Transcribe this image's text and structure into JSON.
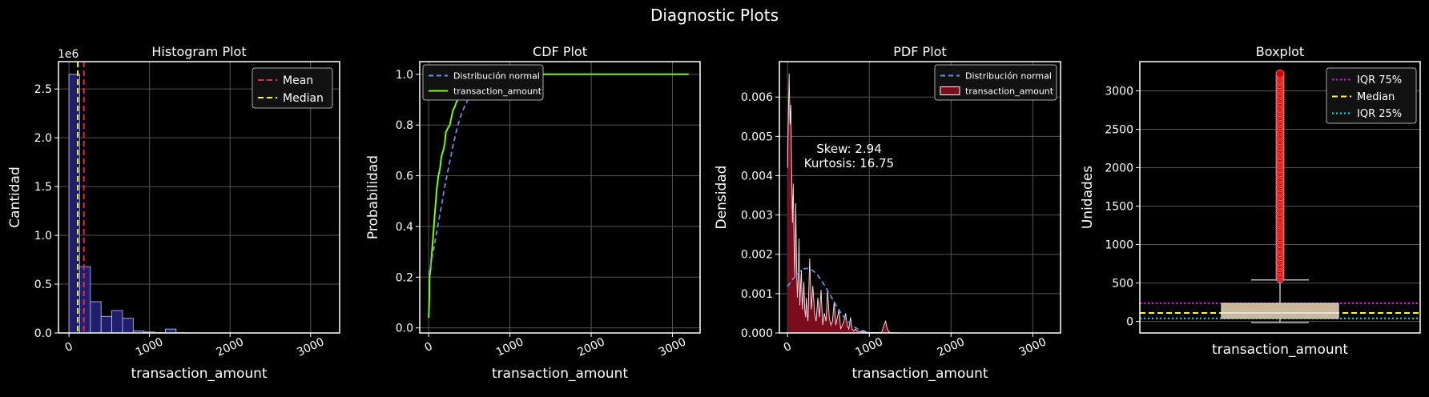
{
  "suptitle": "Diagnostic Plots",
  "colors": {
    "background": "#000000",
    "hist_fill": "#1f1f6e",
    "mean": "#e8284f",
    "median": "#ffff33",
    "normal": "#6a8fd8",
    "cdf_line": "#7cfc00",
    "pdf_fill": "#7a0c1c",
    "iqr75": "#ff00ff",
    "iqr25": "#00e5e5",
    "outlier": "#d10000",
    "box_fill": "#c9b79a"
  },
  "chart_data": [
    {
      "type": "bar",
      "title": "Histogram Plot",
      "xlabel": "transaction_amount",
      "ylabel": "Cantidad",
      "offset_text": "1e6",
      "xlim": [
        -130,
        3360
      ],
      "ylim": [
        0,
        2.78
      ],
      "xticks": [
        0,
        1000,
        2000,
        3000
      ],
      "xtick_labels": [
        "0",
        "1000",
        "2000",
        "3000"
      ],
      "yticks": [
        0.0,
        0.5,
        1.0,
        1.5,
        2.0,
        2.5
      ],
      "ytick_labels": [
        "0.0",
        "0.5",
        "1.0",
        "1.5",
        "2.0",
        "2.5"
      ],
      "bin_width": 133,
      "bin_starts": [
        0,
        133,
        266,
        399,
        532,
        665,
        798,
        931,
        1064,
        1197,
        1330,
        1463,
        1596,
        1729,
        1862,
        1995,
        2128,
        2261,
        2394,
        2527,
        2660,
        2793,
        2926,
        3059
      ],
      "values": [
        2.65,
        0.68,
        0.32,
        0.17,
        0.23,
        0.15,
        0.02,
        0.01,
        0.003,
        0.04,
        0.003,
        0.002,
        0.001,
        0.001,
        0.001,
        0.001,
        0.001,
        0.001,
        0.001,
        0.001,
        0.001,
        0.001,
        0.001,
        0.001
      ],
      "mean": 185,
      "median": 110,
      "legend": [
        "Mean",
        "Median"
      ],
      "legend_loc": "upper right"
    },
    {
      "type": "line",
      "title": "CDF Plot",
      "xlabel": "transaction_amount",
      "ylabel": "Probabilidad",
      "xlim": [
        -110,
        3340
      ],
      "ylim": [
        -0.02,
        1.05
      ],
      "xticks": [
        0,
        1000,
        2000,
        3000
      ],
      "xtick_labels": [
        "0",
        "1000",
        "2000",
        "3000"
      ],
      "yticks": [
        0.0,
        0.2,
        0.4,
        0.6,
        0.8,
        1.0
      ],
      "ytick_labels": [
        "0.0",
        "0.2",
        "0.4",
        "0.6",
        "0.8",
        "1.0"
      ],
      "series": [
        {
          "name": "Distribución normal",
          "style": "dashed",
          "x": [
            0,
            50,
            100,
            150,
            200,
            250,
            300,
            350,
            400,
            450,
            500,
            550,
            600
          ],
          "y": [
            0.21,
            0.29,
            0.38,
            0.47,
            0.56,
            0.64,
            0.72,
            0.79,
            0.84,
            0.88,
            0.91,
            0.94,
            0.96
          ]
        },
        {
          "name": "transaction_amount",
          "style": "solid",
          "x": [
            0,
            8,
            10,
            20,
            30,
            40,
            50,
            60,
            70,
            80,
            90,
            100,
            120,
            140,
            150,
            160,
            180,
            200,
            210,
            240,
            260,
            280,
            300,
            320,
            340,
            360,
            400,
            440,
            480,
            520,
            560,
            600,
            650,
            700,
            800,
            1000,
            1500,
            2000,
            2500,
            3000,
            3200
          ],
          "y": [
            0.04,
            0.12,
            0.2,
            0.22,
            0.26,
            0.3,
            0.34,
            0.38,
            0.43,
            0.47,
            0.51,
            0.55,
            0.6,
            0.63,
            0.66,
            0.68,
            0.7,
            0.73,
            0.77,
            0.79,
            0.8,
            0.83,
            0.86,
            0.87,
            0.89,
            0.9,
            0.92,
            0.94,
            0.95,
            0.96,
            0.97,
            0.98,
            0.99,
            0.995,
            0.998,
            1.0,
            1.0,
            1.0,
            1.0,
            1.0,
            1.0
          ]
        }
      ],
      "legend": [
        "Distribución normal",
        "transaction_amount"
      ],
      "legend_loc": "upper left"
    },
    {
      "type": "area",
      "title": "PDF Plot",
      "xlabel": "transaction_amount",
      "ylabel": "Densidad",
      "xlim": [
        -100,
        3340
      ],
      "ylim": [
        0,
        0.0069
      ],
      "xticks": [
        0,
        1000,
        2000,
        3000
      ],
      "xtick_labels": [
        "0",
        "1000",
        "2000",
        "3000"
      ],
      "yticks": [
        0.0,
        0.001,
        0.002,
        0.003,
        0.004,
        0.005,
        0.006
      ],
      "ytick_labels": [
        "0.000",
        "0.001",
        "0.002",
        "0.003",
        "0.004",
        "0.005",
        "0.006"
      ],
      "series": [
        {
          "name": "Distribución normal",
          "style": "dashed",
          "x": [
            0,
            50,
            100,
            150,
            200,
            250,
            300,
            350,
            400,
            450,
            500,
            550,
            600,
            650,
            700,
            750,
            800,
            850,
            900,
            950,
            1000
          ],
          "y": [
            0.00118,
            0.00133,
            0.00146,
            0.00157,
            0.00163,
            0.00164,
            0.0016,
            0.00151,
            0.00138,
            0.00122,
            0.00104,
            0.00086,
            0.00068,
            0.00052,
            0.00038,
            0.00027,
            0.00018,
            0.00011,
            7e-05,
            4e-05,
            2e-05
          ]
        },
        {
          "name": "transaction_amount",
          "style": "filled",
          "x": [
            0,
            10,
            20,
            30,
            40,
            50,
            60,
            70,
            80,
            90,
            100,
            110,
            120,
            130,
            140,
            150,
            160,
            170,
            180,
            190,
            200,
            210,
            220,
            230,
            240,
            250,
            270,
            290,
            310,
            330,
            350,
            370,
            390,
            410,
            430,
            450,
            470,
            490,
            510,
            530,
            550,
            570,
            590,
            610,
            630,
            650,
            670,
            690,
            710,
            730,
            750,
            770,
            790,
            810,
            830,
            850,
            900,
            1000,
            1150,
            1180,
            1200,
            1220,
            1250,
            1400,
            2000,
            3000,
            3200
          ],
          "y": [
            0.0042,
            0.0055,
            0.0066,
            0.0053,
            0.0058,
            0.0042,
            0.0028,
            0.0038,
            0.0022,
            0.0014,
            0.0033,
            0.0018,
            0.0009,
            0.0014,
            0.0024,
            0.0007,
            0.0012,
            0.0016,
            0.0006,
            0.0009,
            0.0013,
            0.0006,
            0.0004,
            0.0009,
            0.0005,
            0.0003,
            0.0019,
            0.0006,
            0.0012,
            0.0005,
            0.0003,
            0.0009,
            0.0004,
            0.0011,
            0.0002,
            0.0005,
            0.0003,
            0.0011,
            0.0004,
            0.0002,
            0.0003,
            0.0008,
            0.0002,
            0.0004,
            0.0006,
            0.0001,
            0.0002,
            0.0003,
            0.0005,
            0.0002,
            0.0001,
            0.0004,
            0.0001,
            5e-05,
            0.0001,
            5e-05,
            3e-05,
            1e-05,
            1e-05,
            0.0002,
            0.0003,
            0.0001,
            1e-05,
            0.0,
            0.0,
            0.0,
            0.0
          ]
        }
      ],
      "annotation": [
        "Skew: 2.94",
        "Kurtosis: 16.75"
      ],
      "legend": [
        "Distribución normal",
        "transaction_amount"
      ],
      "legend_loc": "upper right"
    },
    {
      "type": "box",
      "title": "Boxplot",
      "xlabel": "transaction_amount",
      "ylabel": "Unidades",
      "ylim": [
        -150,
        3380
      ],
      "yticks": [
        0,
        500,
        1000,
        1500,
        2000,
        2500,
        3000
      ],
      "ytick_labels": [
        "0",
        "500",
        "1000",
        "1500",
        "2000",
        "2500",
        "3000"
      ],
      "q1": 40,
      "median": 110,
      "q3": 235,
      "whisker_low": -15,
      "whisker_high": 540,
      "outliers_min": 560,
      "outliers_max": 3220,
      "iqr75": 235,
      "iqr25": 40,
      "legend": [
        "IQR 75%",
        "Median",
        "IQR 25%"
      ],
      "legend_loc": "upper right"
    }
  ]
}
